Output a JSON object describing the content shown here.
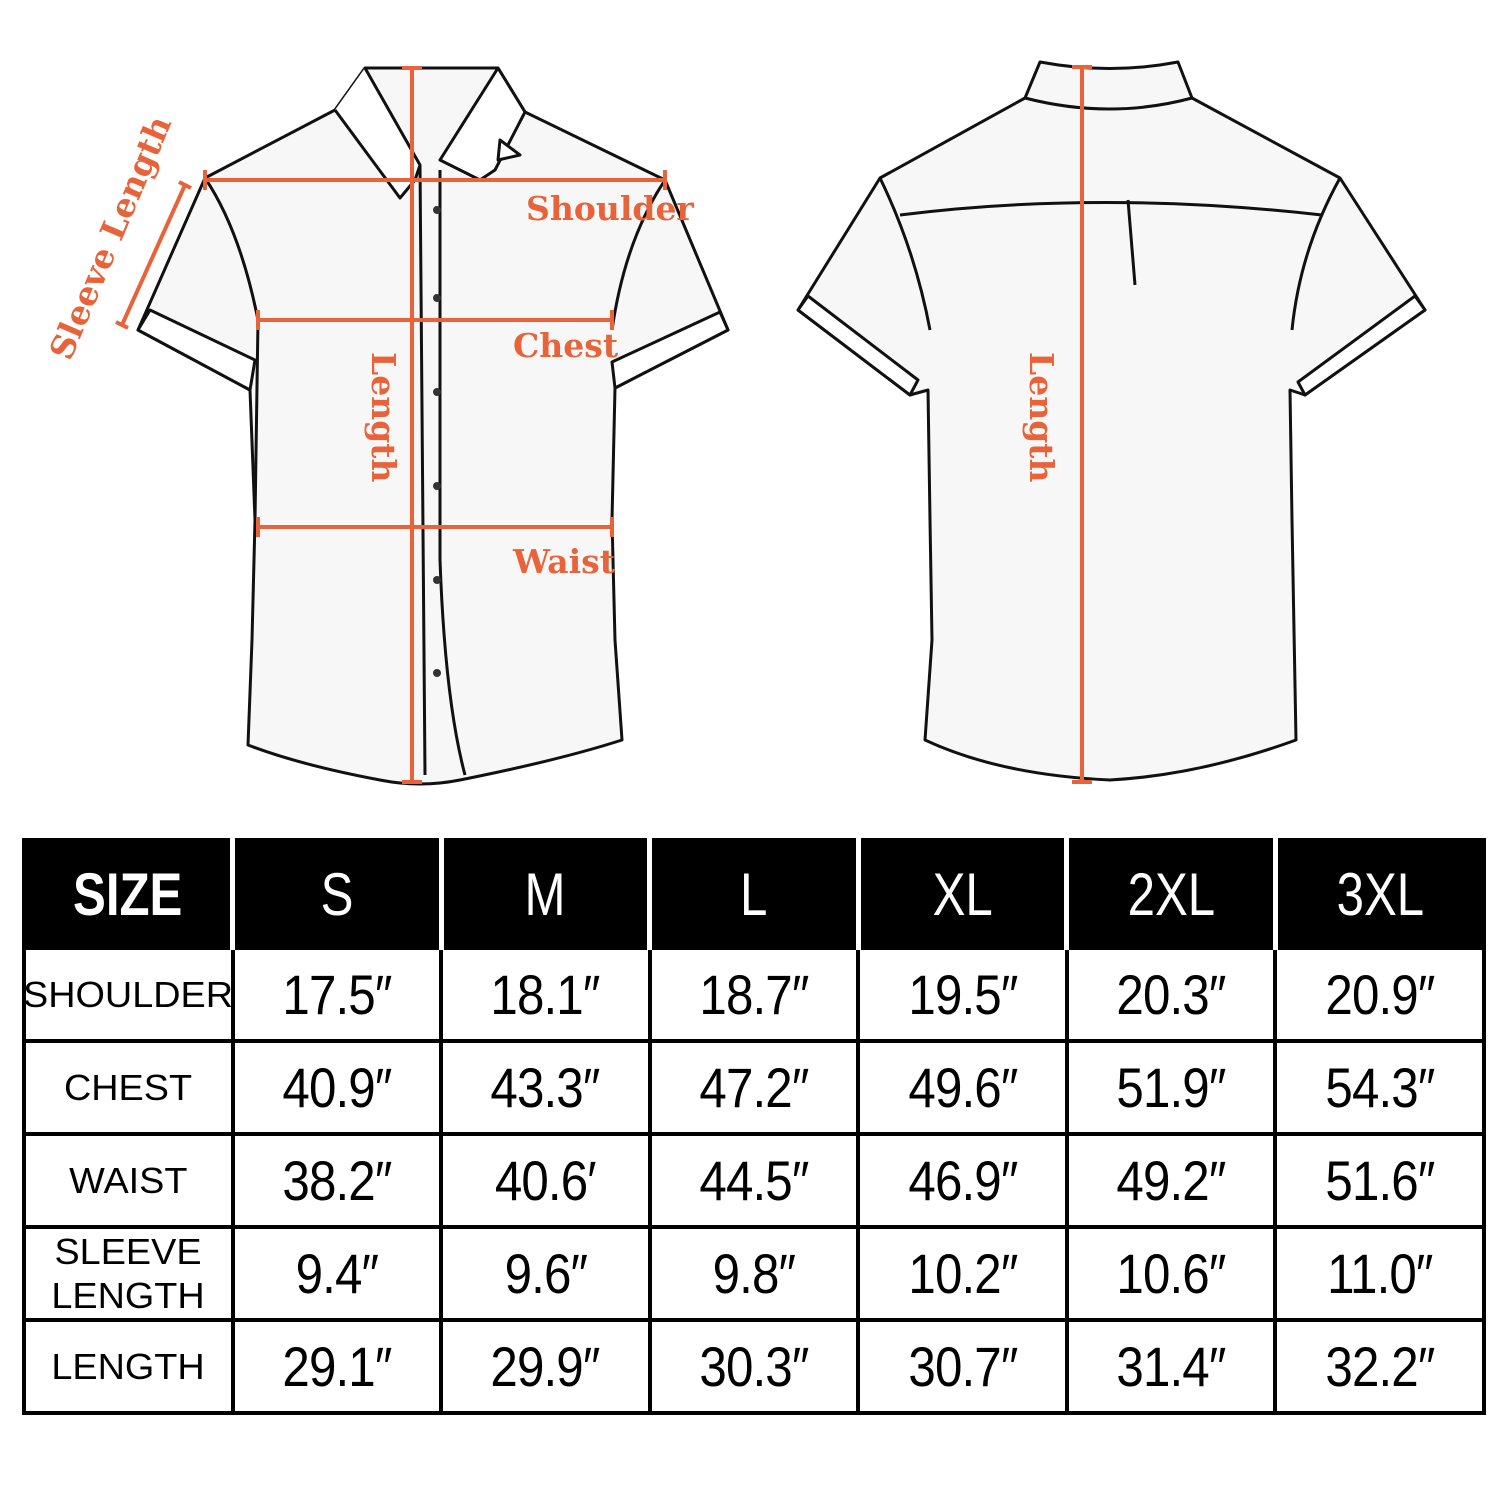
{
  "diagram": {
    "front_labels": {
      "sleeve_length": "Sleeve Length",
      "shoulder": "Shoulder",
      "chest": "Chest",
      "length": "Length",
      "waist": "Waist"
    },
    "back_labels": {
      "length": "Length"
    },
    "accent_color": "#e8633a"
  },
  "table": {
    "headers": [
      "SIZE",
      "S",
      "M",
      "L",
      "XL",
      "2XL",
      "3XL"
    ],
    "rows": [
      {
        "label": "SHOULDER",
        "values": [
          "17.5″",
          "18.1″",
          "18.7″",
          "19.5″",
          "20.3″",
          "20.9″"
        ]
      },
      {
        "label": "CHEST",
        "values": [
          "40.9″",
          "43.3″",
          "47.2″",
          "49.6″",
          "51.9″",
          "54.3″"
        ]
      },
      {
        "label": "WAIST",
        "values": [
          "38.2″",
          "40.6′",
          "44.5″",
          "46.9″",
          "49.2″",
          "51.6″"
        ]
      },
      {
        "label": "SLEEVE\nLENGTH",
        "values": [
          "9.4″",
          "9.6″",
          "9.8″",
          "10.2″",
          "10.6″",
          "11.0″"
        ]
      },
      {
        "label": "LENGTH",
        "values": [
          "29.1″",
          "29.9″",
          "30.3″",
          "30.7″",
          "31.4″",
          "32.2″"
        ]
      }
    ]
  }
}
